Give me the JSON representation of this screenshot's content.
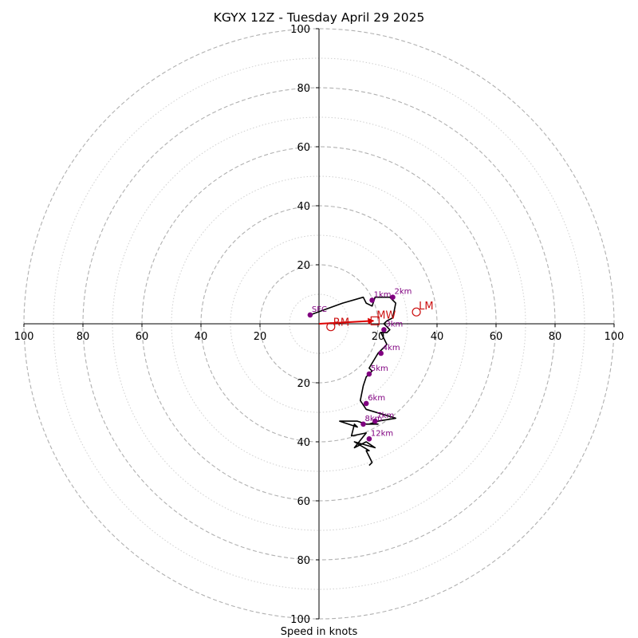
{
  "chart_data": {
    "type": "scatter",
    "title": "KGYX 12Z - Tuesday April 29 2025",
    "xlabel": "Speed in knots",
    "ylabel": "",
    "xlim": [
      -100,
      100
    ],
    "ylim": [
      -100,
      100
    ],
    "grid": true,
    "major_rings": [
      20,
      40,
      60,
      80,
      100
    ],
    "minor_rings": [
      10,
      30,
      50,
      70,
      90
    ],
    "x_ticks": [
      "100",
      "80",
      "60",
      "40",
      "20",
      "20",
      "40",
      "60",
      "80",
      "100"
    ],
    "y_ticks": [
      "100",
      "80",
      "60",
      "40",
      "20",
      "20",
      "40",
      "60",
      "80",
      "100"
    ],
    "x_tick_values": [
      -100,
      -80,
      -60,
      -40,
      -20,
      20,
      40,
      60,
      80,
      100
    ],
    "y_tick_values": [
      100,
      80,
      60,
      40,
      20,
      -20,
      -40,
      -60,
      -80,
      -100
    ],
    "trace": {
      "x": [
        -3,
        8,
        15,
        16,
        18,
        19,
        24,
        26,
        25,
        23,
        22,
        23,
        24,
        23,
        21,
        23,
        20,
        17,
        18,
        16,
        15,
        14,
        16,
        26,
        20,
        17,
        20,
        16,
        13,
        7,
        13,
        12,
        11,
        16,
        12,
        16,
        19,
        12,
        17,
        16,
        17,
        18,
        17
      ],
      "y": [
        3,
        7,
        9,
        7,
        6,
        9,
        9,
        7,
        2,
        1,
        0,
        -1,
        -2,
        -3,
        -3,
        -7,
        -10,
        -15,
        -16,
        -18,
        -21,
        -26,
        -29,
        -32,
        -33,
        -34,
        -34,
        -34,
        -33,
        -33,
        -35,
        -34,
        -38,
        -37,
        -42,
        -40,
        -42,
        -40,
        -43,
        -43,
        -45,
        -47,
        -48
      ]
    },
    "height_markers": [
      {
        "label": "SFC",
        "x": -3,
        "y": 3
      },
      {
        "label": "1km",
        "x": 18,
        "y": 8
      },
      {
        "label": "2km",
        "x": 25,
        "y": 9
      },
      {
        "label": "3km",
        "x": 22,
        "y": -2
      },
      {
        "label": "4km",
        "x": 21,
        "y": -10
      },
      {
        "label": "5km",
        "x": 17,
        "y": -17
      },
      {
        "label": "6km",
        "x": 16,
        "y": -27
      },
      {
        "label": "7km",
        "x": 19,
        "y": -33
      },
      {
        "label": "8km",
        "x": 15,
        "y": -34
      },
      {
        "label": "12km",
        "x": 17,
        "y": -39
      }
    ],
    "storm_motion": {
      "RM": {
        "label": "RM",
        "x": 4,
        "y": -1
      },
      "LM": {
        "label": "LM",
        "x": 33,
        "y": 4
      },
      "MW": {
        "label": "MW",
        "x": 19,
        "y": 1
      },
      "bunkers_vector": {
        "from_x": 0,
        "from_y": 0,
        "to_x": 19,
        "to_y": 1
      }
    },
    "colors": {
      "trace": "#000000",
      "height_markers": "#800080",
      "storm_motion": "#cc1010",
      "major_rings": "#b0b0b0",
      "minor_rings": "#cfcfcf"
    }
  }
}
